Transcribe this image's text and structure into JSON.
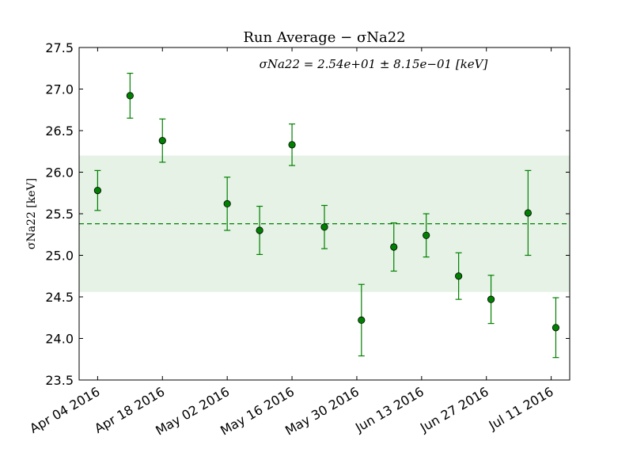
{
  "chart_data": {
    "type": "scatter",
    "title": "Run Average  −  σNa22",
    "ylabel": "σNa22  [keV]",
    "xlabel": "",
    "annotation": "σNa22 = 2.54e+01 ± 8.15e−01  [keV]",
    "ylim": [
      23.5,
      27.5
    ],
    "yticks": [
      "23.5",
      "24.0",
      "24.5",
      "25.0",
      "25.5",
      "26.0",
      "26.5",
      "27.0",
      "27.5"
    ],
    "xlim": [
      "2016-03-31",
      "2016-07-15"
    ],
    "xticks": [
      "2016-04-04",
      "2016-04-18",
      "2016-05-02",
      "2016-05-16",
      "2016-05-30",
      "2016-06-13",
      "2016-06-27",
      "2016-07-11"
    ],
    "xtick_labels": [
      "Apr 04 2016",
      "Apr 18 2016",
      "May 02 2016",
      "May 16 2016",
      "May 30 2016",
      "Jun 13 2016",
      "Jun 27 2016",
      "Jul 11 2016"
    ],
    "grid": false,
    "mean": 25.38,
    "band": [
      24.56,
      26.2
    ],
    "color": "#008000",
    "band_color": "#e5f2e5",
    "points": [
      {
        "date": "2016-04-04",
        "y": 25.78,
        "err": 0.24
      },
      {
        "date": "2016-04-11",
        "y": 26.92,
        "err": 0.27
      },
      {
        "date": "2016-04-18",
        "y": 26.38,
        "err": 0.26
      },
      {
        "date": "2016-05-02",
        "y": 25.62,
        "err": 0.32
      },
      {
        "date": "2016-05-09",
        "y": 25.3,
        "err": 0.29
      },
      {
        "date": "2016-05-16",
        "y": 26.33,
        "err": 0.25
      },
      {
        "date": "2016-05-23",
        "y": 25.34,
        "err": 0.26
      },
      {
        "date": "2016-05-31",
        "y": 24.22,
        "err": 0.43
      },
      {
        "date": "2016-06-07",
        "y": 25.1,
        "err": 0.29
      },
      {
        "date": "2016-06-14",
        "y": 25.24,
        "err": 0.26
      },
      {
        "date": "2016-06-21",
        "y": 24.75,
        "err": 0.28
      },
      {
        "date": "2016-06-28",
        "y": 24.47,
        "err": 0.29
      },
      {
        "date": "2016-07-06",
        "y": 25.51,
        "err": 0.51
      },
      {
        "date": "2016-07-12",
        "y": 24.13,
        "err": 0.36
      }
    ]
  }
}
